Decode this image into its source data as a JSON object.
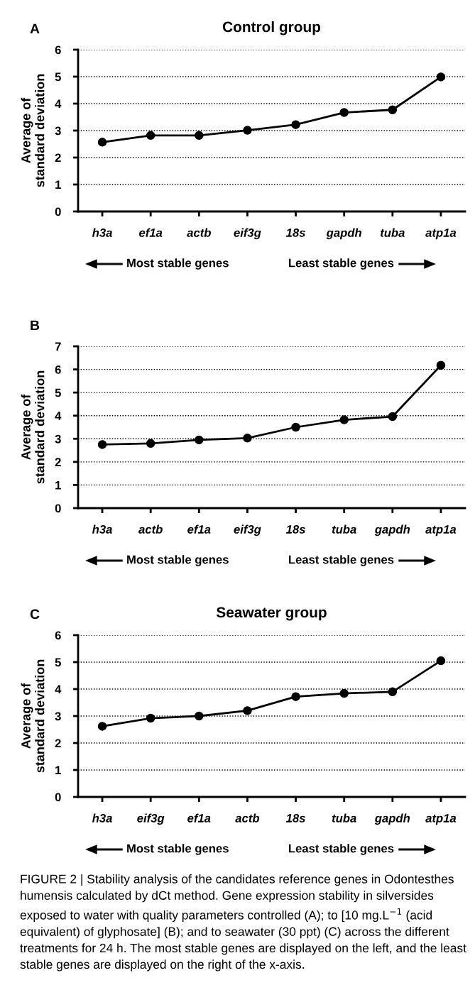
{
  "chart_data": [
    {
      "type": "line",
      "title": "Control group",
      "ylabel": "Average of\nstandard deviation",
      "categories": [
        "h3a",
        "ef1a",
        "actb",
        "eif3g",
        "18s",
        "gapdh",
        "tuba",
        "atp1a"
      ],
      "series": [
        {
          "color": "#000000",
          "values": [
            2.57,
            2.82,
            2.82,
            3.01,
            3.22,
            3.67,
            3.77,
            4.99
          ]
        }
      ],
      "ylim": [
        0,
        6
      ],
      "yticks": [
        0,
        1,
        2,
        3,
        4,
        5,
        6
      ],
      "grid": "y",
      "marker": "circle",
      "line_style": "solid",
      "legend": false,
      "annotations": [
        "A",
        "Most stable genes",
        "Least stable genes"
      ]
    },
    {
      "type": "line",
      "ylabel": "Average of\nstandard deviation",
      "categories": [
        "h3a",
        "actb",
        "ef1a",
        "eif3g",
        "18s",
        "tuba",
        "gapdh",
        "atp1a"
      ],
      "series": [
        {
          "color": "#000000",
          "values": [
            2.75,
            2.8,
            2.95,
            3.03,
            3.5,
            3.82,
            3.96,
            6.18
          ]
        }
      ],
      "ylim": [
        0,
        7
      ],
      "yticks": [
        0,
        1,
        2,
        3,
        4,
        5,
        6,
        7
      ],
      "grid": "y",
      "marker": "circle",
      "line_style": "solid",
      "legend": false,
      "annotations": [
        "B",
        "Most stable genes",
        "Least stable genes"
      ]
    },
    {
      "type": "line",
      "title": "Seawater group",
      "ylabel": "Average of\nstandard deviation",
      "categories": [
        "h3a",
        "eif3g",
        "ef1a",
        "actb",
        "18s",
        "tuba",
        "gapdh",
        "atp1a"
      ],
      "series": [
        {
          "color": "#000000",
          "values": [
            2.62,
            2.92,
            3.0,
            3.2,
            3.72,
            3.84,
            3.9,
            5.05
          ]
        }
      ],
      "ylim": [
        0,
        6
      ],
      "yticks": [
        0,
        1,
        2,
        3,
        4,
        5,
        6
      ],
      "grid": "y",
      "marker": "circle",
      "line_style": "solid",
      "legend": false,
      "annotations": [
        "C",
        "Most stable genes",
        "Least stable genes",
        "FIGURE 2 | Stability analysis of the candidates reference genes in Odontesthes humensis calculated by dCt method. Gene expression stability in silversides exposed to water with quality parameters controlled (A); to [10 mg.L$^{−1}$ (acid equivalent) of glyphosate] (B); and to seawater (30 ppt) (C) across the different treatments for 24 h. The most stable genes are displayed on the left, and the least stable genes are displayed on the right of the x-axis."
      ]
    }
  ]
}
